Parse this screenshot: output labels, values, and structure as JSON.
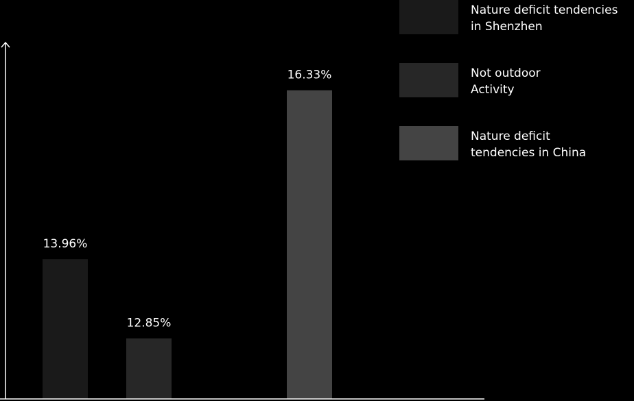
{
  "chart_data": {
    "type": "bar",
    "series": [
      {
        "name": "Nature deficit tendencies\nin Shenzhen",
        "color": "#1a1a1a",
        "values": [
          13.96
        ],
        "value_labels": [
          "13.96%"
        ]
      },
      {
        "name": "Not outdoor\nActivity",
        "color": "#272727",
        "values": [
          12.85
        ],
        "value_labels": [
          "12.85%"
        ]
      },
      {
        "name": "Nature deficit\ntendencies in China",
        "color": "#444444",
        "values": [
          16.33
        ],
        "value_labels": [
          "16.33%"
        ]
      }
    ],
    "ylim": [
      12,
      17
    ]
  }
}
